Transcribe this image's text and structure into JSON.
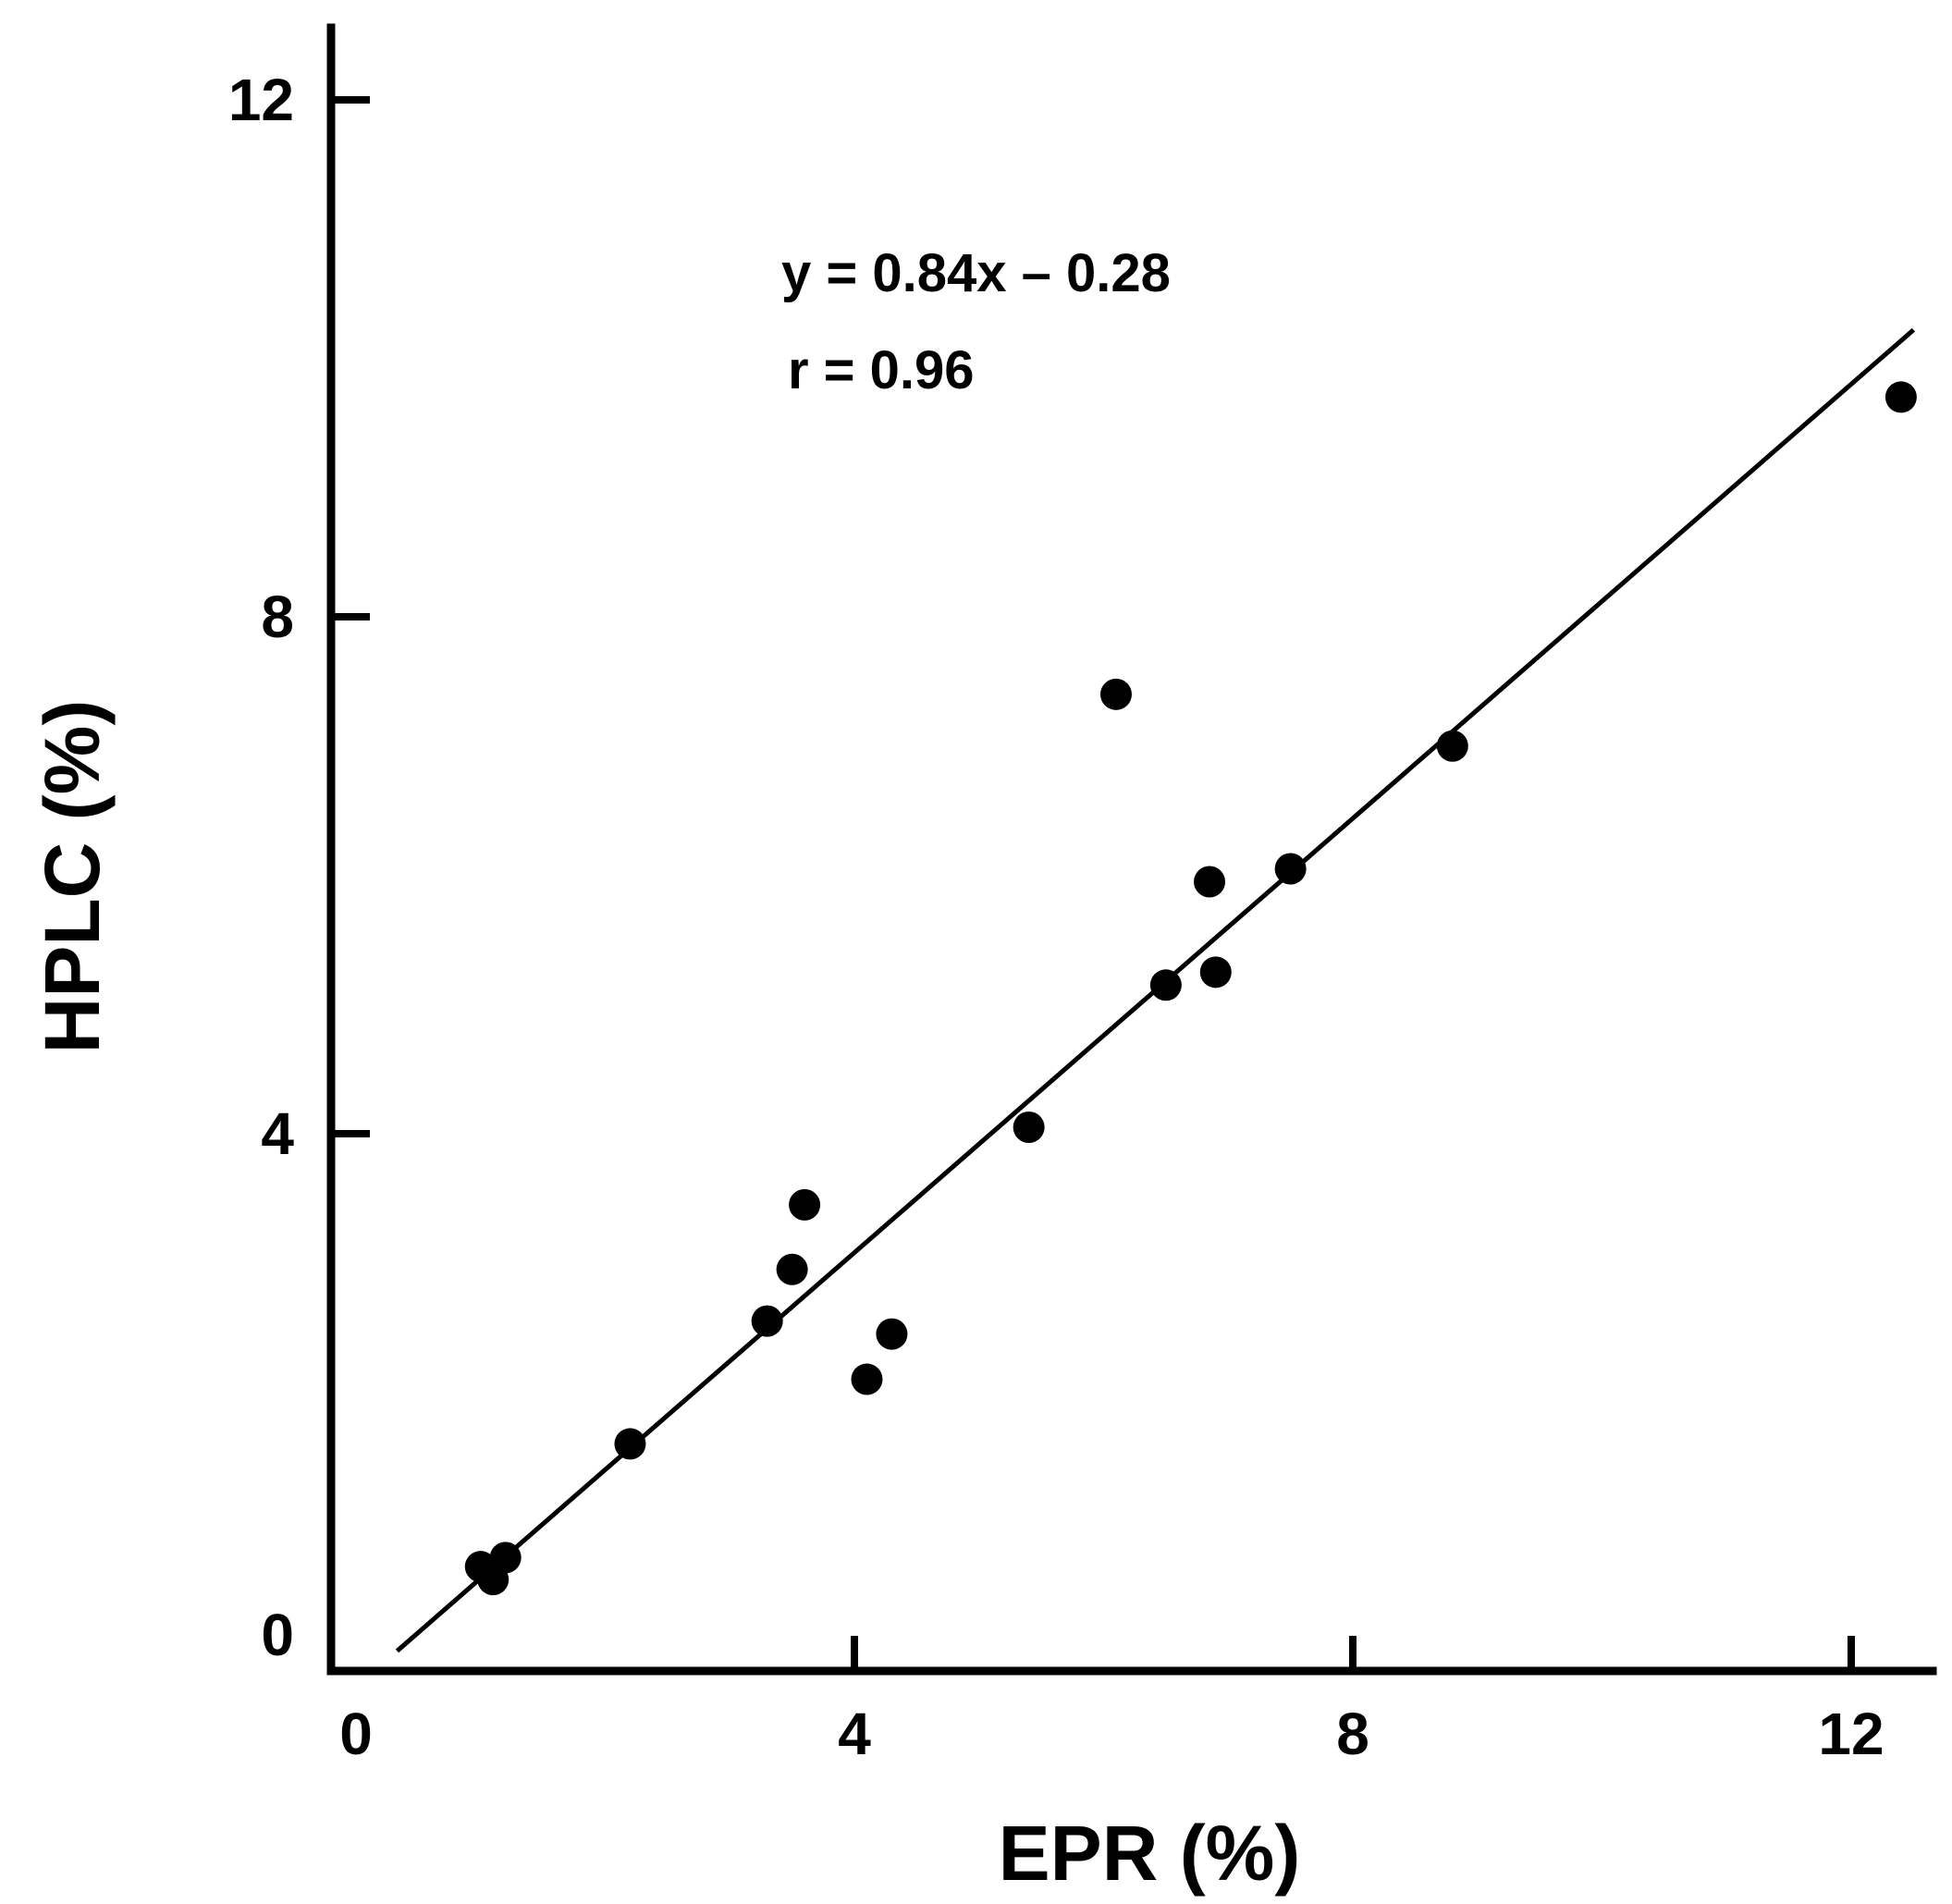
{
  "chart_data": {
    "type": "scatter",
    "title": "",
    "xlabel": "EPR (%)",
    "ylabel": "HPLC (%)",
    "xlim": [
      0,
      12.5
    ],
    "ylim": [
      0,
      12.5
    ],
    "xticks": [
      0,
      4,
      8,
      12
    ],
    "yticks": [
      0,
      4,
      8,
      12
    ],
    "grid": false,
    "points": [
      {
        "x": 1.0,
        "y": 0.65
      },
      {
        "x": 1.1,
        "y": 0.55
      },
      {
        "x": 1.2,
        "y": 0.72
      },
      {
        "x": 2.2,
        "y": 1.6
      },
      {
        "x": 3.3,
        "y": 2.55
      },
      {
        "x": 3.5,
        "y": 2.95
      },
      {
        "x": 3.6,
        "y": 3.45
      },
      {
        "x": 4.1,
        "y": 2.1
      },
      {
        "x": 4.3,
        "y": 2.45
      },
      {
        "x": 5.4,
        "y": 4.05
      },
      {
        "x": 6.1,
        "y": 7.4
      },
      {
        "x": 6.5,
        "y": 5.15
      },
      {
        "x": 6.85,
        "y": 5.95
      },
      {
        "x": 6.9,
        "y": 5.25
      },
      {
        "x": 7.5,
        "y": 6.05
      },
      {
        "x": 8.8,
        "y": 7.0
      },
      {
        "x": 12.4,
        "y": 9.7
      }
    ],
    "fit_line": {
      "slope": 0.84,
      "intercept": -0.28,
      "x_range": [
        0.33,
        12.5
      ]
    },
    "annotations": [
      "y = 0.84x – 0.28",
      "r = 0.96"
    ]
  }
}
